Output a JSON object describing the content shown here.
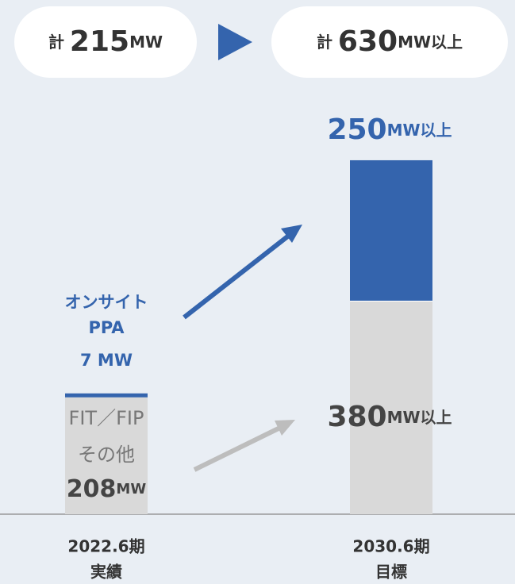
{
  "chart_data": {
    "type": "stacked_bar",
    "categories": [
      "2022.6期",
      "2030.6期"
    ],
    "category_sublabels": [
      "実績",
      "目標"
    ],
    "totals": [
      "計 215MW",
      "計 630MW以上"
    ],
    "series": [
      {
        "name": "FIT／FIP その他",
        "color": "#d9d9d9",
        "values": [
          208,
          380
        ],
        "value_labels": [
          "208MW",
          "380MW以上"
        ]
      },
      {
        "name": "オンサイト PPA",
        "color": "#3464ad",
        "values": [
          7,
          250
        ],
        "value_labels": [
          "7 MW",
          "250MW以上"
        ]
      }
    ],
    "ylim": [
      0,
      650
    ]
  }
}
